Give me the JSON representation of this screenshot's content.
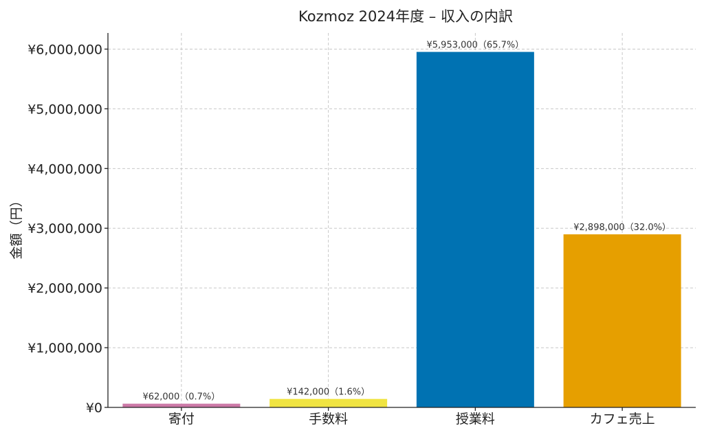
{
  "chart_data": {
    "type": "bar",
    "title": "Kozmoz 2024年度 – 収入の内訳",
    "xlabel": "",
    "ylabel": "金額（円）",
    "categories": [
      "寄付",
      "手数料",
      "授業料",
      "カフェ売上"
    ],
    "values": [
      62000,
      142000,
      5953000,
      2898000
    ],
    "data_labels": [
      "¥62,000（0.7%）",
      "¥142,000（1.6%）",
      "¥5,953,000（65.7%）",
      "¥2,898,000（32.0%）"
    ],
    "colors": [
      "#cc79a7",
      "#f0e442",
      "#0072b2",
      "#e69f00"
    ],
    "ylim": [
      0,
      6270000
    ],
    "y_ticks": [
      0,
      1000000,
      2000000,
      3000000,
      4000000,
      5000000,
      6000000
    ],
    "y_tick_labels": [
      "¥0",
      "¥1,000,000",
      "¥2,000,000",
      "¥3,000,000",
      "¥4,000,000",
      "¥5,000,000",
      "¥6,000,000"
    ],
    "grid": true,
    "legend": "none"
  }
}
